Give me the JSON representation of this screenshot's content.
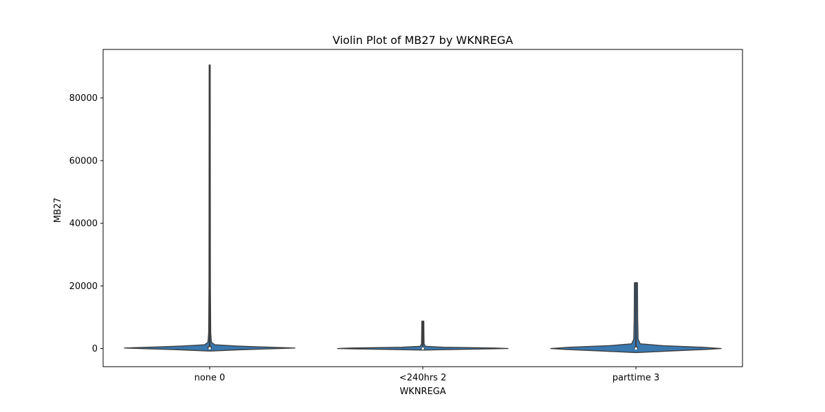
{
  "chart_data": {
    "type": "violin",
    "title": "Violin Plot of MB27 by WKNREGA",
    "xlabel": "WKNREGA",
    "ylabel": "MB27",
    "ylim": [
      -5800,
      95500
    ],
    "yticks": [
      0,
      20000,
      40000,
      60000,
      80000
    ],
    "grid": false,
    "colors": {
      "fill": "#3a78b0",
      "edge": "#3d3d3d"
    },
    "categories": [
      "none 0",
      "<240hrs 2",
      "parttime 3"
    ],
    "series": [
      {
        "category": "none 0",
        "min": 0,
        "q1": 0,
        "median": 80,
        "q3": 500,
        "max": 90500,
        "density": [
          [
            -800,
            0.02
          ],
          [
            -400,
            0.35
          ],
          [
            0,
            0.82
          ],
          [
            150,
            1.0
          ],
          [
            400,
            0.72
          ],
          [
            800,
            0.32
          ],
          [
            1200,
            0.06
          ],
          [
            2000,
            0.02
          ],
          [
            5000,
            0.012
          ],
          [
            20000,
            0.008
          ],
          [
            50000,
            0.007
          ],
          [
            90500,
            0.006
          ]
        ]
      },
      {
        "category": "<240hrs 2",
        "min": 0,
        "q1": 0,
        "median": 0,
        "q3": 80,
        "max": 8700,
        "density": [
          [
            -500,
            0.01
          ],
          [
            -250,
            0.5
          ],
          [
            0,
            1.0
          ],
          [
            150,
            0.85
          ],
          [
            400,
            0.25
          ],
          [
            700,
            0.03
          ],
          [
            1500,
            0.015
          ],
          [
            5000,
            0.013
          ],
          [
            8700,
            0.012
          ]
        ]
      },
      {
        "category": "parttime 3",
        "min": 0,
        "q1": 0,
        "median": 0,
        "q3": 300,
        "max": 21000,
        "density": [
          [
            -1300,
            0.01
          ],
          [
            -800,
            0.4
          ],
          [
            -300,
            0.82
          ],
          [
            0,
            1.0
          ],
          [
            400,
            0.78
          ],
          [
            900,
            0.32
          ],
          [
            1500,
            0.05
          ],
          [
            3000,
            0.025
          ],
          [
            10000,
            0.02
          ],
          [
            21000,
            0.018
          ]
        ]
      }
    ]
  }
}
